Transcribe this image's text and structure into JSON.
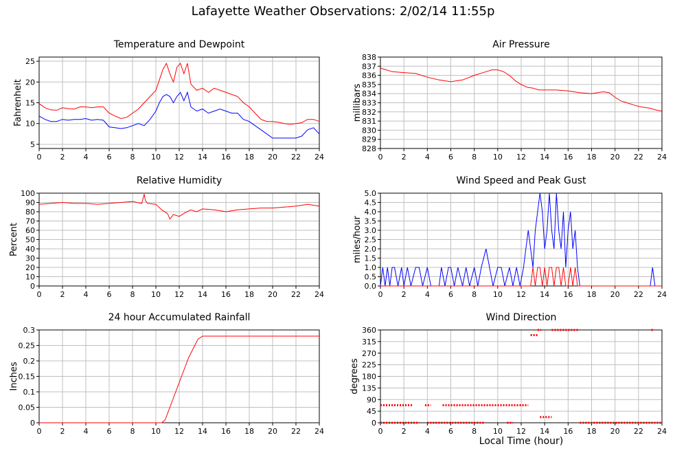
{
  "page": {
    "title": "Lafayette Weather Observations: 2/02/14 11:55p",
    "x_axis_label": "Local Time (hour)"
  },
  "colors": {
    "red": "#ff0000",
    "blue": "#0000ff",
    "grid": "#bfbfbf",
    "frame": "#000000"
  },
  "chart_data": [
    {
      "id": "temp",
      "type": "line",
      "title": "Temperature and Dewpoint",
      "xlabel": "",
      "ylabel": "Fahrenheit",
      "xlim": [
        0,
        24
      ],
      "ylim": [
        4,
        26
      ],
      "xticks": [
        0,
        2,
        4,
        6,
        8,
        10,
        12,
        14,
        16,
        18,
        20,
        22,
        24
      ],
      "yticks": [
        5,
        10,
        15,
        20,
        25
      ],
      "grid": true,
      "series": [
        {
          "color": "#ff0000",
          "x": [
            0,
            0.5,
            1,
            1.5,
            2,
            2.5,
            3,
            3.5,
            4,
            4.5,
            5,
            5.5,
            6,
            6.5,
            7,
            7.5,
            8,
            8.5,
            9,
            9.5,
            10,
            10.3,
            10.6,
            10.9,
            11.2,
            11.5,
            11.8,
            12.1,
            12.4,
            12.7,
            13,
            13.5,
            14,
            14.5,
            15,
            15.5,
            16,
            16.5,
            17,
            17.5,
            18,
            18.5,
            19,
            19.5,
            20,
            20.5,
            21,
            21.5,
            22,
            22.5,
            23,
            23.5,
            24
          ],
          "y": [
            14.8,
            13.8,
            13.3,
            13.2,
            13.8,
            13.6,
            13.5,
            14.0,
            14.0,
            13.8,
            14.0,
            14.0,
            12.5,
            11.8,
            11.2,
            11.5,
            12.5,
            13.5,
            15.0,
            16.5,
            18.0,
            20.5,
            23.0,
            24.5,
            22.0,
            20.0,
            23.5,
            24.5,
            22.0,
            24.5,
            19.5,
            18.0,
            18.5,
            17.5,
            18.5,
            18.0,
            17.5,
            17.0,
            16.5,
            15.0,
            14.0,
            12.5,
            11.0,
            10.5,
            10.5,
            10.3,
            10.0,
            9.8,
            10.0,
            10.2,
            11.0,
            11.0,
            10.5
          ]
        },
        {
          "color": "#0000ff",
          "x": [
            0,
            0.5,
            1,
            1.5,
            2,
            2.5,
            3,
            3.5,
            4,
            4.5,
            5,
            5.5,
            6,
            6.5,
            7,
            7.5,
            8,
            8.5,
            9,
            9.5,
            10,
            10.3,
            10.6,
            10.9,
            11.2,
            11.5,
            11.8,
            12.1,
            12.4,
            12.7,
            13,
            13.5,
            14,
            14.5,
            15,
            15.5,
            16,
            16.5,
            17,
            17.5,
            18,
            18.5,
            19,
            19.5,
            20,
            20.5,
            21,
            21.5,
            22,
            22.5,
            23,
            23.5,
            24
          ],
          "y": [
            11.8,
            11.0,
            10.5,
            10.5,
            11.0,
            10.8,
            11.0,
            11.0,
            11.2,
            10.8,
            11.0,
            10.8,
            9.2,
            9.0,
            8.8,
            9.0,
            9.5,
            10.0,
            9.5,
            11.0,
            13.0,
            15.0,
            16.5,
            17.0,
            16.5,
            15.0,
            16.5,
            17.5,
            15.5,
            17.5,
            14.0,
            13.0,
            13.5,
            12.5,
            13.0,
            13.5,
            13.0,
            12.5,
            12.5,
            11.0,
            10.5,
            9.5,
            8.5,
            7.5,
            6.5,
            6.5,
            6.5,
            6.5,
            6.5,
            7.0,
            8.5,
            9.0,
            7.5
          ]
        }
      ]
    },
    {
      "id": "pressure",
      "type": "line",
      "title": "Air Pressure",
      "xlabel": "",
      "ylabel": "millibars",
      "xlim": [
        0,
        24
      ],
      "ylim": [
        828,
        838
      ],
      "xticks": [
        0,
        2,
        4,
        6,
        8,
        10,
        12,
        14,
        16,
        18,
        20,
        22,
        24
      ],
      "yticks": [
        828,
        829,
        830,
        831,
        832,
        833,
        834,
        835,
        836,
        837,
        838
      ],
      "grid": true,
      "series": [
        {
          "color": "#ff0000",
          "x": [
            0,
            0.5,
            1,
            2,
            3,
            4,
            5,
            6,
            7,
            8,
            9,
            9.5,
            10,
            10.5,
            11,
            11.5,
            12,
            12.5,
            13,
            13.5,
            14,
            15,
            16,
            17,
            18,
            18.5,
            19,
            19.5,
            20,
            20.5,
            21,
            21.5,
            22,
            22.5,
            23,
            23.5,
            24
          ],
          "y": [
            836.8,
            836.6,
            836.4,
            836.3,
            836.2,
            835.8,
            835.5,
            835.3,
            835.5,
            836.0,
            836.4,
            836.6,
            836.6,
            836.4,
            836.0,
            835.4,
            835.0,
            834.7,
            834.6,
            834.4,
            834.4,
            834.4,
            834.3,
            834.1,
            834.0,
            834.1,
            834.2,
            834.1,
            833.6,
            833.2,
            833.0,
            832.8,
            832.6,
            832.5,
            832.4,
            832.2,
            832.1
          ]
        }
      ]
    },
    {
      "id": "humidity",
      "type": "line",
      "title": "Relative Humidity",
      "xlabel": "",
      "ylabel": "Percent",
      "xlim": [
        0,
        24
      ],
      "ylim": [
        0,
        100
      ],
      "xticks": [
        0,
        2,
        4,
        6,
        8,
        10,
        12,
        14,
        16,
        18,
        20,
        22,
        24
      ],
      "yticks": [
        0,
        10,
        20,
        30,
        40,
        50,
        60,
        70,
        80,
        90,
        100
      ],
      "grid": true,
      "series": [
        {
          "color": "#ff0000",
          "x": [
            0,
            1,
            2,
            3,
            4,
            5,
            6,
            7,
            8,
            8.8,
            9,
            9.1,
            9.3,
            10,
            10.5,
            11,
            11.2,
            11.5,
            12,
            12.5,
            13,
            13.5,
            14,
            15,
            16,
            17,
            18,
            19,
            20,
            21,
            22,
            23,
            24
          ],
          "y": [
            88,
            89,
            90,
            89,
            89,
            88,
            89,
            90,
            91,
            89,
            99,
            92,
            89,
            88,
            82,
            78,
            72,
            77,
            75,
            79,
            82,
            80,
            83,
            82,
            80,
            82,
            83,
            84,
            84,
            85,
            86,
            88,
            86
          ]
        }
      ]
    },
    {
      "id": "wind",
      "type": "line",
      "title": "Wind Speed and Peak Gust",
      "xlabel": "",
      "ylabel": "miles/hour",
      "xlim": [
        0,
        24
      ],
      "ylim": [
        0,
        5
      ],
      "xticks": [
        0,
        2,
        4,
        6,
        8,
        10,
        12,
        14,
        16,
        18,
        20,
        22,
        24
      ],
      "yticks": [
        0.0,
        0.5,
        1.0,
        1.5,
        2.0,
        2.5,
        3.0,
        3.5,
        4.0,
        4.5,
        5.0
      ],
      "grid": true,
      "series": [
        {
          "color": "#0000ff",
          "x": [
            0,
            0.2,
            0.4,
            0.6,
            0.8,
            1.0,
            1.2,
            1.5,
            1.8,
            2.0,
            2.3,
            2.6,
            3.0,
            3.3,
            3.6,
            4.0,
            4.3,
            5.0,
            5.2,
            5.5,
            5.8,
            6.0,
            6.3,
            6.6,
            7.0,
            7.3,
            7.6,
            8.0,
            8.3,
            8.6,
            9.0,
            9.3,
            9.6,
            10.0,
            10.3,
            10.6,
            11.0,
            11.3,
            11.6,
            11.9,
            12.2,
            12.4,
            12.6,
            12.8,
            13.0,
            13.2,
            13.4,
            13.6,
            13.8,
            14.0,
            14.2,
            14.4,
            14.6,
            14.8,
            15.0,
            15.2,
            15.4,
            15.6,
            15.8,
            16.0,
            16.2,
            16.4,
            16.6,
            16.8,
            17.0,
            23.0,
            23.2,
            23.4
          ],
          "y": [
            0,
            1,
            0,
            1,
            0,
            1,
            1,
            0,
            1,
            0,
            1,
            0,
            1,
            1,
            0,
            1,
            0,
            0,
            1,
            0,
            1,
            1,
            0,
            1,
            0,
            1,
            0,
            1,
            0,
            1,
            2,
            1,
            0,
            1,
            1,
            0,
            1,
            0,
            1,
            0,
            1,
            2,
            3,
            2,
            1,
            3,
            4,
            5,
            4,
            2,
            3,
            5,
            3,
            2,
            5,
            3,
            2,
            4,
            1,
            3,
            4,
            2,
            3,
            1,
            0,
            0,
            1,
            0
          ]
        },
        {
          "color": "#ff0000",
          "x": [
            0,
            12.8,
            13.0,
            13.2,
            13.4,
            13.6,
            13.8,
            14.0,
            14.2,
            14.4,
            14.6,
            14.8,
            15.0,
            15.2,
            15.4,
            15.6,
            15.8,
            16.0,
            16.2,
            16.4,
            16.6,
            16.8,
            17.0,
            24
          ],
          "y": [
            0,
            0,
            1,
            0,
            1,
            1,
            0,
            1,
            0,
            1,
            1,
            0,
            1,
            1,
            0,
            1,
            0,
            0,
            1,
            0,
            1,
            0,
            0,
            0
          ]
        }
      ]
    },
    {
      "id": "rain",
      "type": "line",
      "title": "24 hour Accumulated Rainfall",
      "xlabel": "",
      "ylabel": "Inches",
      "xlim": [
        0,
        24
      ],
      "ylim": [
        0,
        0.3
      ],
      "xticks": [
        0,
        2,
        4,
        6,
        8,
        10,
        12,
        14,
        16,
        18,
        20,
        22,
        24
      ],
      "yticks": [
        0,
        0.05,
        0.1,
        0.15,
        0.2,
        0.25,
        0.3
      ],
      "grid": true,
      "series": [
        {
          "color": "#ff0000",
          "x": [
            0,
            10.5,
            10.8,
            11.2,
            11.6,
            12.0,
            12.4,
            12.8,
            13.2,
            13.6,
            14.0,
            24
          ],
          "y": [
            0,
            0,
            0.01,
            0.05,
            0.09,
            0.13,
            0.17,
            0.21,
            0.24,
            0.27,
            0.28,
            0.28
          ]
        }
      ]
    },
    {
      "id": "direction",
      "type": "scatter",
      "title": "Wind Direction",
      "xlabel": "Local Time (hour)",
      "ylabel": "degrees",
      "xlim": [
        0,
        24
      ],
      "ylim": [
        0,
        360
      ],
      "xticks": [
        0,
        2,
        4,
        6,
        8,
        10,
        12,
        14,
        16,
        18,
        20,
        22,
        24
      ],
      "yticks": [
        0,
        45,
        90,
        135,
        180,
        225,
        270,
        315,
        360
      ],
      "grid": true,
      "series": [
        {
          "color": "#ff0000",
          "segments": [
            {
              "x0": 0.0,
              "x1": 2.7,
              "y": 68
            },
            {
              "x0": 3.8,
              "x1": 4.3,
              "y": 68
            },
            {
              "x0": 5.3,
              "x1": 12.6,
              "y": 68
            },
            {
              "x0": 0.0,
              "x1": 3.3,
              "y": 0
            },
            {
              "x0": 4.0,
              "x1": 8.8,
              "y": 0
            },
            {
              "x0": 10.8,
              "x1": 11.3,
              "y": 0
            },
            {
              "x0": 12.8,
              "x1": 13.4,
              "y": 340
            },
            {
              "x0": 13.4,
              "x1": 13.7,
              "y": 360
            },
            {
              "x0": 13.6,
              "x1": 14.6,
              "y": 22
            },
            {
              "x0": 14.6,
              "x1": 16.9,
              "y": 360
            },
            {
              "x0": 17.0,
              "x1": 24.0,
              "y": 0
            },
            {
              "x0": 23.1,
              "x1": 23.3,
              "y": 360
            }
          ]
        }
      ]
    }
  ]
}
